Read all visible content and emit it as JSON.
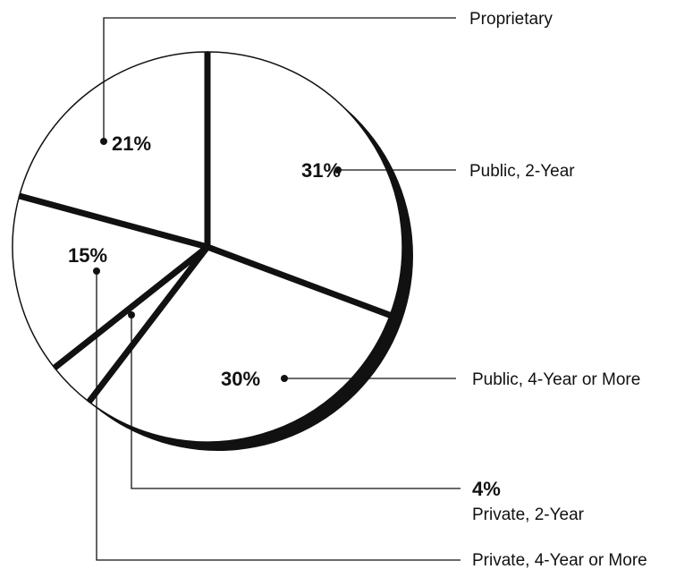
{
  "chart_data": {
    "type": "pie",
    "categories": [
      "Public, 2-Year",
      "Public, 4-Year or More",
      "Private, 2-Year",
      "Private, 4-Year or More",
      "Proprietary"
    ],
    "values": [
      31,
      30,
      4,
      15,
      21
    ],
    "value_labels": [
      "31%",
      "30%",
      "4%",
      "15%",
      "21%"
    ],
    "color": "#ffffff"
  }
}
